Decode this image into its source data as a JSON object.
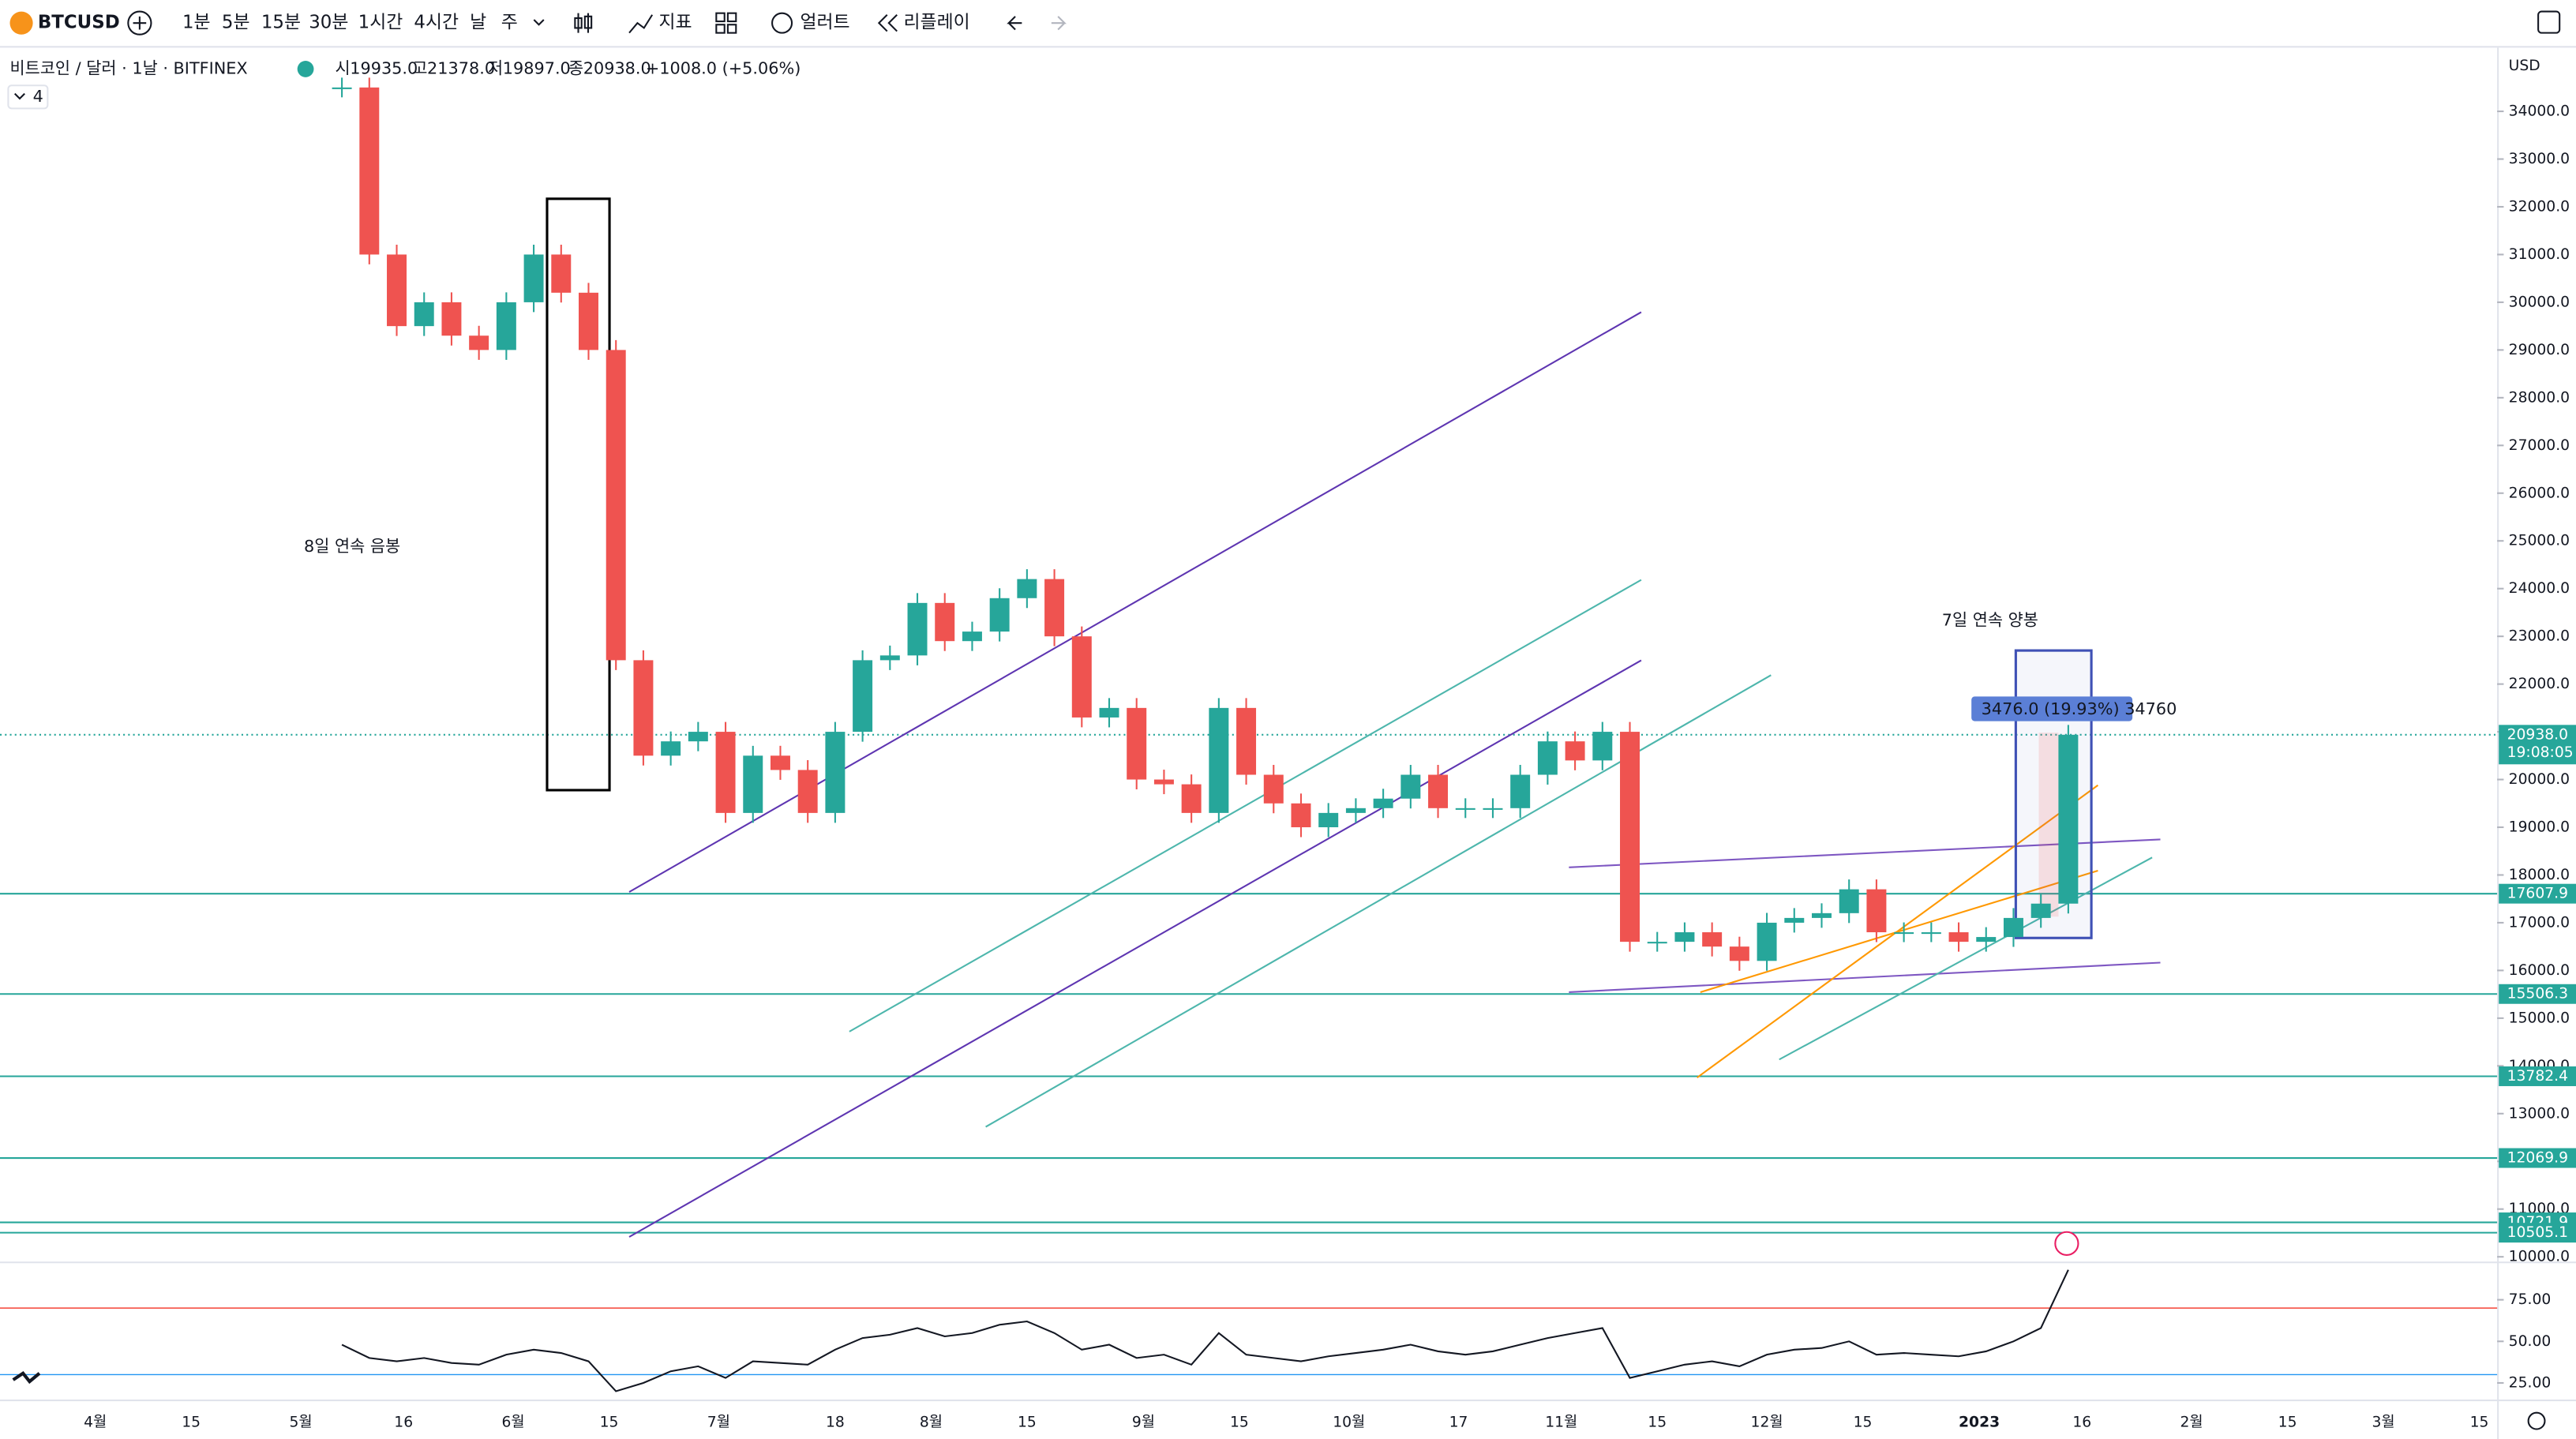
{
  "toolbar": {
    "symbol": "BTCUSD",
    "intervals": [
      "1분",
      "5분",
      "15분",
      "30분",
      "1시간",
      "4시간",
      "날",
      "주"
    ],
    "indicators": "지표",
    "alerts": "얼러트",
    "replay": "리플레이"
  },
  "legend": {
    "title": "비트코인 / 달러 · 1날 · BITFINEX",
    "open_label": "시",
    "open": "19935.0",
    "high_label": "고",
    "high": "21378.0",
    "low_label": "저",
    "low": "19897.0",
    "close_label": "종",
    "close": "20938.0",
    "change": "+1008.0 (+5.06%)",
    "indicator_count": "4"
  },
  "chart_data": {
    "type": "candlestick",
    "currency": "USD",
    "closes": [
      34500,
      31000,
      29500,
      30000,
      29300,
      29000,
      30000,
      31000,
      30200,
      29000,
      22500,
      20500,
      20800,
      21000,
      19300,
      20500,
      20200,
      19300,
      21000,
      22500,
      22600,
      23700,
      22900,
      23100,
      23800,
      24200,
      23000,
      21300,
      21500,
      20000,
      19900,
      19300,
      21500,
      20100,
      19500,
      19000,
      19300,
      19400,
      19600,
      20100,
      19400,
      19400,
      19400,
      20100,
      20800,
      20400,
      21000,
      16600,
      16600,
      16800,
      16500,
      16200,
      17000,
      17100,
      17200,
      17700,
      16800,
      16800,
      16800,
      16600,
      16700,
      17100,
      17400,
      20938
    ],
    "up_color": "#26a69a",
    "down_color": "#ef5350",
    "ylim": [
      9900,
      35300
    ],
    "yticks": [
      {
        "value": 10000,
        "label": "10000.0"
      },
      {
        "value": 11000,
        "label": "11000.0"
      },
      {
        "value": 12000,
        "label": "12000.0"
      },
      {
        "value": 13000,
        "label": "13000.0"
      },
      {
        "value": 14000,
        "label": "14000.0"
      },
      {
        "value": 15000,
        "label": "15000.0"
      },
      {
        "value": 16000,
        "label": "16000.0"
      },
      {
        "value": 17000,
        "label": "17000.0"
      },
      {
        "value": 18000,
        "label": "18000.0"
      },
      {
        "value": 19000,
        "label": "19000.0"
      },
      {
        "value": 20000,
        "label": "20000.0"
      },
      {
        "value": 21000,
        "label": "21000.0"
      },
      {
        "value": 22000,
        "label": "22000.0"
      },
      {
        "value": 23000,
        "label": "23000.0"
      },
      {
        "value": 24000,
        "label": "24000.0"
      },
      {
        "value": 25000,
        "label": "25000.0"
      },
      {
        "value": 26000,
        "label": "26000.0"
      },
      {
        "value": 27000,
        "label": "27000.0"
      },
      {
        "value": 28000,
        "label": "28000.0"
      },
      {
        "value": 29000,
        "label": "29000.0"
      },
      {
        "value": 30000,
        "label": "30000.0"
      },
      {
        "value": 31000,
        "label": "31000.0"
      },
      {
        "value": 32000,
        "label": "32000.0"
      },
      {
        "value": 33000,
        "label": "33000.0"
      },
      {
        "value": 34000,
        "label": "34000.0"
      }
    ],
    "last_price": {
      "value": 20938,
      "label": "20938.0"
    },
    "countdown": "19:08:05",
    "levels": [
      17607.9,
      15506.3,
      13782.4,
      12069.9,
      10721.9,
      10505.1
    ],
    "xticks": [
      "4월",
      "15",
      "5월",
      "16",
      "6월",
      "15",
      "7월",
      "18",
      "8월",
      "15",
      "9월",
      "15",
      "10월",
      "17",
      "11월",
      "15",
      "12월",
      "15",
      "2023",
      "16",
      "2월",
      "15",
      "3월",
      "15"
    ],
    "annotations": [
      "8일 연속 음봉",
      "7일 연속 양봉"
    ],
    "measure": "3476.0 (19.93%) 34760",
    "rsi": {
      "values": [
        48,
        40,
        38,
        40,
        37,
        36,
        42,
        45,
        43,
        38,
        20,
        25,
        32,
        35,
        28,
        38,
        37,
        36,
        45,
        52,
        54,
        58,
        53,
        55,
        60,
        62,
        55,
        45,
        48,
        40,
        42,
        36,
        55,
        42,
        40,
        38,
        41,
        43,
        45,
        48,
        44,
        42,
        44,
        48,
        52,
        55,
        58,
        28,
        32,
        36,
        38,
        35,
        42,
        45,
        46,
        50,
        42,
        43,
        42,
        41,
        44,
        50,
        58,
        93
      ],
      "ylim": [
        15,
        96
      ],
      "yticks": [
        {
          "value": 75,
          "label": "75.00"
        },
        {
          "value": 50,
          "label": "50.00"
        },
        {
          "value": 25,
          "label": "25.00"
        }
      ],
      "bands": [
        70,
        30
      ]
    }
  }
}
